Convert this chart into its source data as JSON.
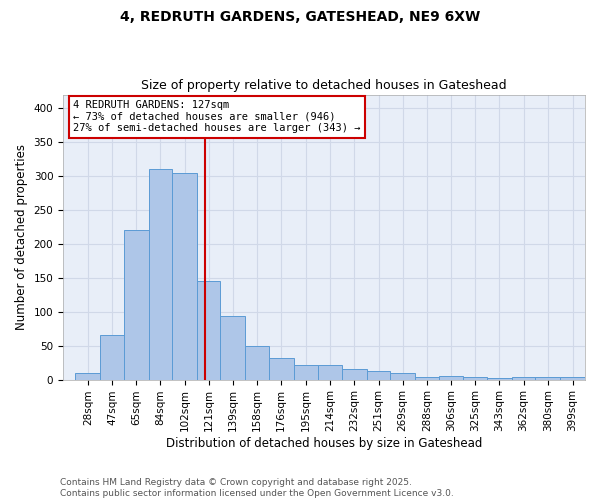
{
  "title1": "4, REDRUTH GARDENS, GATESHEAD, NE9 6XW",
  "title2": "Size of property relative to detached houses in Gateshead",
  "xlabel": "Distribution of detached houses by size in Gateshead",
  "ylabel": "Number of detached properties",
  "bin_labels": [
    "28sqm",
    "47sqm",
    "65sqm",
    "84sqm",
    "102sqm",
    "121sqm",
    "139sqm",
    "158sqm",
    "176sqm",
    "195sqm",
    "214sqm",
    "232sqm",
    "251sqm",
    "269sqm",
    "288sqm",
    "306sqm",
    "325sqm",
    "343sqm",
    "362sqm",
    "380sqm",
    "399sqm"
  ],
  "bin_edges": [
    28,
    47,
    65,
    84,
    102,
    121,
    139,
    158,
    176,
    195,
    214,
    232,
    251,
    269,
    288,
    306,
    325,
    343,
    362,
    380,
    399
  ],
  "bar_heights": [
    10,
    65,
    220,
    310,
    305,
    145,
    93,
    49,
    32,
    21,
    21,
    15,
    12,
    10,
    4,
    5,
    4,
    2,
    4,
    4,
    4
  ],
  "bar_color": "#aec6e8",
  "bar_edge_color": "#5b9bd5",
  "red_line_x": 127,
  "annotation_text": "4 REDRUTH GARDENS: 127sqm\n← 73% of detached houses are smaller (946)\n27% of semi-detached houses are larger (343) →",
  "annotation_box_color": "#cc0000",
  "ylim": [
    0,
    420
  ],
  "yticks": [
    0,
    50,
    100,
    150,
    200,
    250,
    300,
    350,
    400
  ],
  "grid_color": "#d0d8e8",
  "background_color": "#e8eef8",
  "footnote1": "Contains HM Land Registry data © Crown copyright and database right 2025.",
  "footnote2": "Contains public sector information licensed under the Open Government Licence v3.0.",
  "title_fontsize": 10,
  "subtitle_fontsize": 9,
  "axis_label_fontsize": 8.5,
  "tick_fontsize": 7.5,
  "annotation_fontsize": 7.5,
  "footnote_fontsize": 6.5
}
